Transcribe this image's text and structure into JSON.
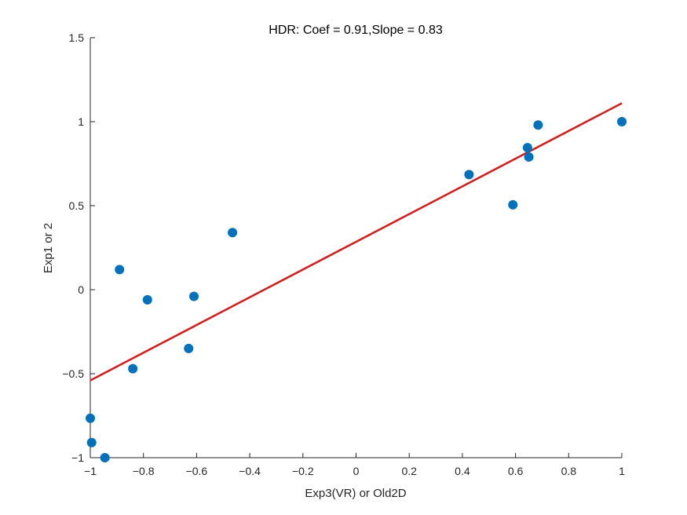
{
  "chart_data": {
    "type": "scatter",
    "title": "HDR: Coef = 0.91,Slope = 0.83",
    "xlabel": "Exp3(VR) or Old2D",
    "ylabel": "Exp1 or 2",
    "xlim": [
      -1,
      1
    ],
    "ylim": [
      -1,
      1.5
    ],
    "x_ticks": [
      -1,
      -0.8,
      -0.6,
      -0.4,
      -0.2,
      0,
      0.2,
      0.4,
      0.6,
      0.8,
      1
    ],
    "x_tick_labels": [
      "−1",
      "−0.8",
      "−0.6",
      "−0.4",
      "−0.2",
      "0",
      "0.2",
      "0.4",
      "0.6",
      "0.8",
      "1"
    ],
    "y_ticks": [
      -1,
      -0.5,
      0,
      0.5,
      1,
      1.5
    ],
    "y_tick_labels": [
      "−1",
      "−0.5",
      "0",
      "0.5",
      "1",
      "1.5"
    ],
    "grid": false,
    "colors": {
      "points": "#0072BD",
      "fit_line": "#D91A1A",
      "axis": "#262626"
    },
    "points": [
      {
        "x": -1.0,
        "y": -0.765
      },
      {
        "x": -0.995,
        "y": -0.91
      },
      {
        "x": -0.945,
        "y": -1.0
      },
      {
        "x": -0.89,
        "y": 0.12
      },
      {
        "x": -0.84,
        "y": -0.47
      },
      {
        "x": -0.785,
        "y": -0.06
      },
      {
        "x": -0.63,
        "y": -0.35
      },
      {
        "x": -0.61,
        "y": -0.04
      },
      {
        "x": -0.465,
        "y": 0.34
      },
      {
        "x": 0.425,
        "y": 0.685
      },
      {
        "x": 0.59,
        "y": 0.505
      },
      {
        "x": 0.645,
        "y": 0.845
      },
      {
        "x": 0.65,
        "y": 0.79
      },
      {
        "x": 0.685,
        "y": 0.98
      },
      {
        "x": 1.0,
        "y": 1.0
      }
    ],
    "fit_line": {
      "x": [
        -1,
        1
      ],
      "y": [
        -0.54,
        1.11
      ]
    }
  }
}
